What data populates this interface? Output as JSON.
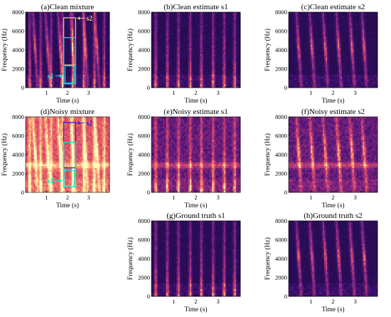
{
  "chart_data": [
    {
      "type": "heatmap",
      "variant": "mixture",
      "noisy": false,
      "title": "(a)Clean mixture",
      "xlabel": "Time (s)",
      "ylabel": "Frequency (Hz)",
      "xticks": [
        "1",
        "2",
        "3"
      ],
      "yticks": [
        "0",
        "2000",
        "4000",
        "6000",
        "8000"
      ],
      "xlim": [
        0,
        4
      ],
      "ylim": [
        0,
        8000
      ],
      "annotations": [
        {
          "label": "s1",
          "color": "#00e5e5"
        },
        {
          "label": "s2",
          "color": "#f0c080"
        }
      ]
    },
    {
      "type": "heatmap",
      "variant": "s1",
      "noisy": false,
      "title": "(b)Clean estimate s1",
      "xlabel": "Time (s)",
      "ylabel": "Frequency (Hz)",
      "xticks": [
        "1",
        "2",
        "3"
      ],
      "yticks": [
        "0",
        "2000",
        "4000",
        "6000",
        "8000"
      ],
      "xlim": [
        0,
        4
      ],
      "ylim": [
        0,
        8000
      ],
      "annotations": []
    },
    {
      "type": "heatmap",
      "variant": "s2",
      "noisy": false,
      "title": "(c)Clean estimate s2",
      "xlabel": "Time (s)",
      "ylabel": "Frequency (Hz)",
      "xticks": [
        "1",
        "2",
        "3"
      ],
      "yticks": [
        "0",
        "2000",
        "4000",
        "6000",
        "8000"
      ],
      "xlim": [
        0,
        4
      ],
      "ylim": [
        0,
        8000
      ],
      "annotations": []
    },
    {
      "type": "heatmap",
      "variant": "mixture",
      "noisy": true,
      "title": "(d)Noisy mixture",
      "xlabel": "Time (s)",
      "ylabel": "Frequency (Hz)",
      "xticks": [
        "1",
        "2",
        "3"
      ],
      "yticks": [
        "0",
        "2000",
        "4000",
        "6000",
        "8000"
      ],
      "xlim": [
        0,
        4
      ],
      "ylim": [
        0,
        8000
      ],
      "annotations": [
        {
          "label": "s1",
          "color": "#00e5e5"
        },
        {
          "label": "s2",
          "color": "#3a28d8"
        }
      ]
    },
    {
      "type": "heatmap",
      "variant": "s1",
      "noisy": true,
      "title": "(e)Noisy estimate s1",
      "xlabel": "Time (s)",
      "ylabel": "Frequency (Hz)",
      "xticks": [
        "1",
        "2",
        "3"
      ],
      "yticks": [
        "0",
        "2000",
        "4000",
        "6000",
        "8000"
      ],
      "xlim": [
        0,
        4
      ],
      "ylim": [
        0,
        8000
      ],
      "annotations": []
    },
    {
      "type": "heatmap",
      "variant": "s2",
      "noisy": true,
      "title": "(f)Noisy estimate s2",
      "xlabel": "Time (s)",
      "ylabel": "Frequency (Hz)",
      "xticks": [
        "1",
        "2",
        "3"
      ],
      "yticks": [
        "0",
        "2000",
        "4000",
        "6000",
        "8000"
      ],
      "xlim": [
        0,
        4
      ],
      "ylim": [
        0,
        8000
      ],
      "annotations": []
    },
    {
      "type": "heatmap",
      "variant": "s1",
      "noisy": false,
      "title": "(g)Ground truth s1",
      "xlabel": "Time (s)",
      "ylabel": "Frequency (Hz)",
      "xticks": [
        "1",
        "2",
        "3"
      ],
      "yticks": [
        "0",
        "2000",
        "4000",
        "6000",
        "8000"
      ],
      "xlim": [
        0,
        4
      ],
      "ylim": [
        0,
        8000
      ],
      "annotations": []
    },
    {
      "type": "heatmap",
      "variant": "s2",
      "noisy": false,
      "title": "(h)Ground truth s2",
      "xlabel": "Time (s)",
      "ylabel": "Frequency (Hz)",
      "xticks": [
        "1",
        "2",
        "3"
      ],
      "yticks": [
        "0",
        "2000",
        "4000",
        "6000",
        "8000"
      ],
      "xlim": [
        0,
        4
      ],
      "ylim": [
        0,
        8000
      ],
      "annotations": []
    }
  ],
  "colormap": [
    "#0d0a29",
    "#3b0f70",
    "#8c2981",
    "#de4968",
    "#fe9f6d",
    "#fcfdbf"
  ]
}
